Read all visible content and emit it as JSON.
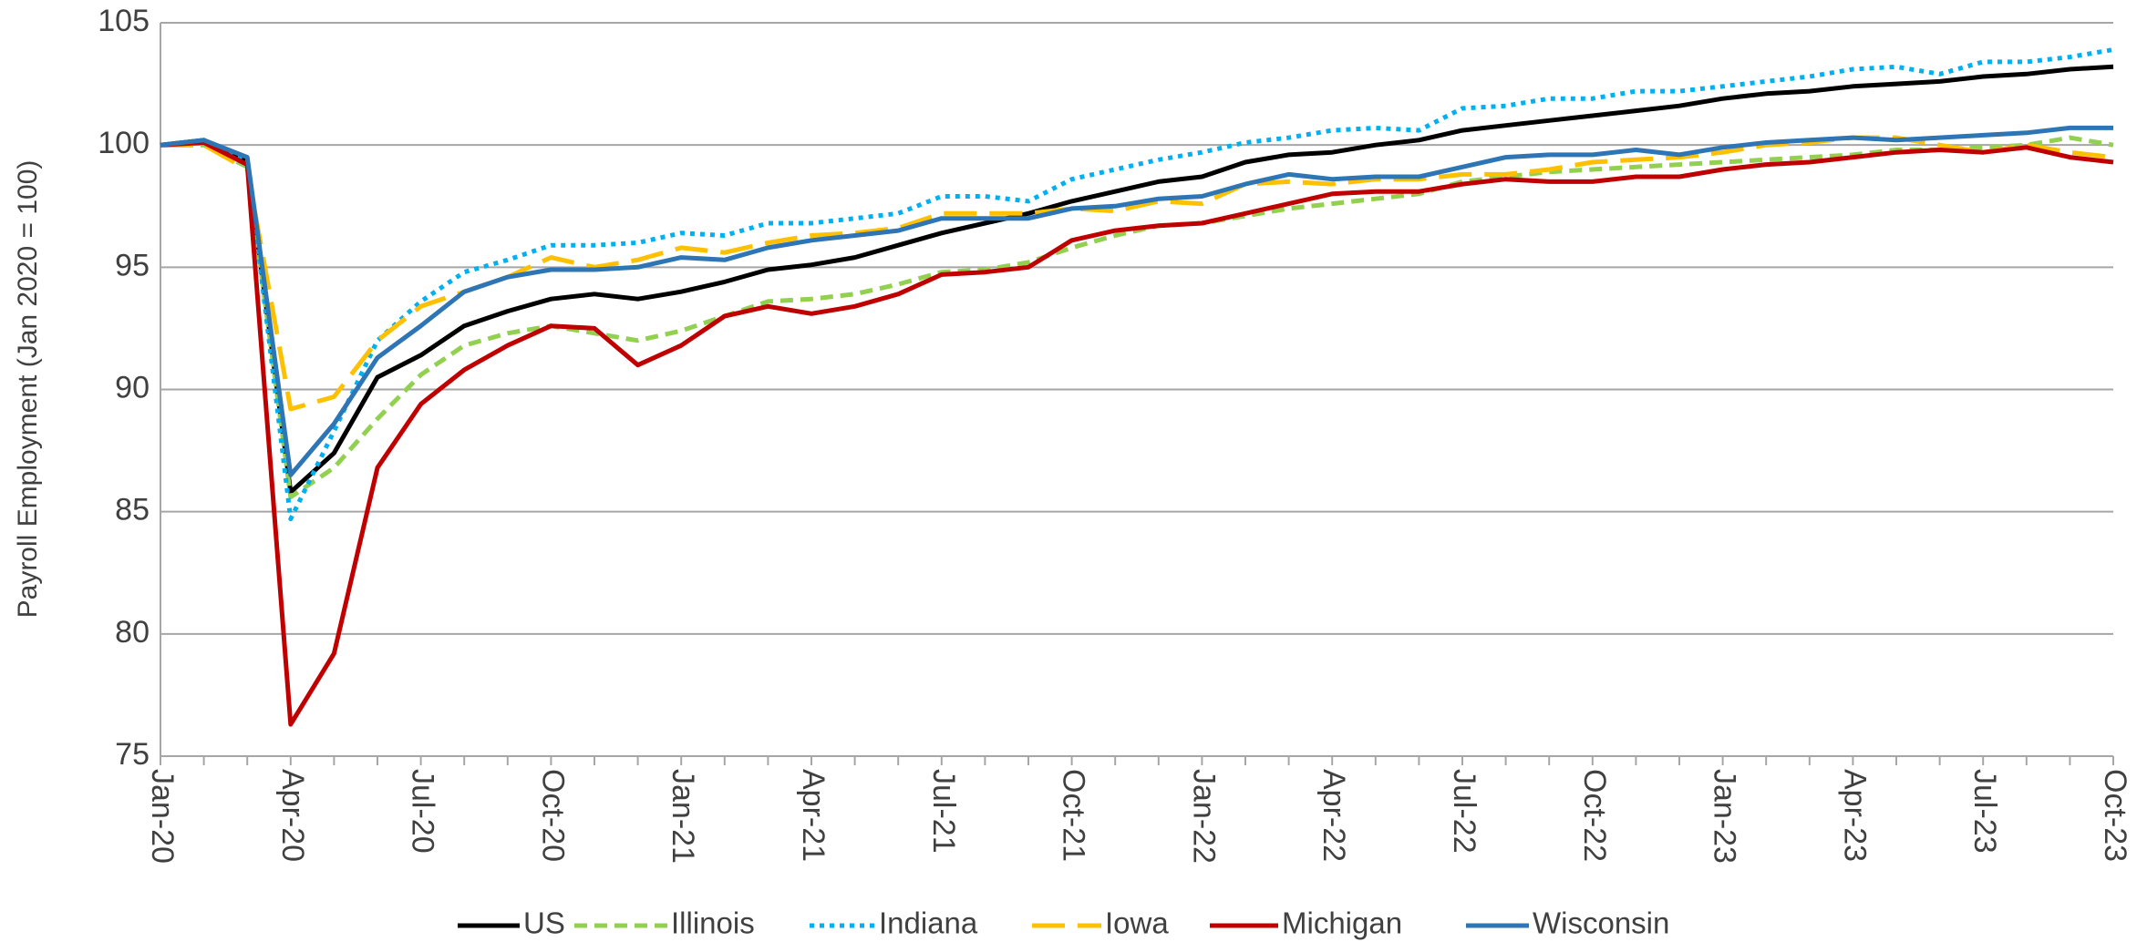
{
  "chart_data": {
    "type": "line",
    "y_label": "Payroll Employment (Jan 2020 = 100)",
    "categories": [
      "Jan-20",
      null,
      null,
      "Apr-20",
      null,
      null,
      "Jul-20",
      null,
      null,
      "Oct-20",
      null,
      null,
      "Jan-21",
      null,
      null,
      "Apr-21",
      null,
      null,
      "Jul-21",
      null,
      null,
      "Oct-21",
      null,
      null,
      "Jan-22",
      null,
      null,
      "Apr-22",
      null,
      null,
      "Jul-22",
      null,
      null,
      "Oct-22",
      null,
      null,
      "Jan-23",
      null,
      null,
      "Apr-23",
      null,
      null,
      "Jul-23",
      null,
      null,
      "Oct-23"
    ],
    "ylim": [
      75,
      105
    ],
    "yticks": [
      75,
      80,
      85,
      90,
      95,
      100,
      105
    ],
    "grid": true,
    "legend": "bottom",
    "series": [
      {
        "name": "US",
        "color": "#000000",
        "style": "solid",
        "values": [
          100,
          100.2,
          99.3,
          85.8,
          87.4,
          90.5,
          91.4,
          92.6,
          93.2,
          93.7,
          93.9,
          93.7,
          94.0,
          94.4,
          94.9,
          95.1,
          95.4,
          95.9,
          96.4,
          96.8,
          97.2,
          97.7,
          98.1,
          98.5,
          98.7,
          99.3,
          99.6,
          99.7,
          100.0,
          100.2,
          100.6,
          100.8,
          101.0,
          101.2,
          101.4,
          101.6,
          101.9,
          102.1,
          102.2,
          102.4,
          102.5,
          102.6,
          102.8,
          102.9,
          103.1,
          103.2
        ]
      },
      {
        "name": "Illinois",
        "color": "#92d050",
        "style": "dashed",
        "values": [
          100,
          100.0,
          99.1,
          85.6,
          86.8,
          88.8,
          90.6,
          91.8,
          92.3,
          92.6,
          92.3,
          92.0,
          92.4,
          93.0,
          93.6,
          93.7,
          93.9,
          94.3,
          94.8,
          94.9,
          95.2,
          95.8,
          96.3,
          96.7,
          96.8,
          97.1,
          97.4,
          97.6,
          97.8,
          98.0,
          98.5,
          98.7,
          98.9,
          99.0,
          99.1,
          99.2,
          99.3,
          99.4,
          99.5,
          99.6,
          99.8,
          99.8,
          99.9,
          100.0,
          100.3,
          100.0
        ]
      },
      {
        "name": "Indiana",
        "color": "#00b0f0",
        "style": "dotted",
        "values": [
          100,
          100.1,
          99.4,
          84.7,
          88.3,
          92.0,
          93.6,
          94.8,
          95.3,
          95.9,
          95.9,
          96.0,
          96.4,
          96.3,
          96.8,
          96.8,
          97.0,
          97.2,
          97.9,
          97.9,
          97.7,
          98.6,
          99.0,
          99.4,
          99.7,
          100.1,
          100.3,
          100.6,
          100.7,
          100.6,
          101.5,
          101.6,
          101.9,
          101.9,
          102.2,
          102.2,
          102.4,
          102.6,
          102.8,
          103.1,
          103.2,
          102.9,
          103.4,
          103.4,
          103.6,
          103.9
        ]
      },
      {
        "name": "Iowa",
        "color": "#ffc000",
        "style": "longdash",
        "values": [
          100,
          100.0,
          99.0,
          89.2,
          89.7,
          92.0,
          93.4,
          94.0,
          94.6,
          95.4,
          95.0,
          95.3,
          95.8,
          95.6,
          96.0,
          96.3,
          96.4,
          96.6,
          97.2,
          97.2,
          97.2,
          97.4,
          97.3,
          97.7,
          97.6,
          98.4,
          98.5,
          98.4,
          98.6,
          98.6,
          98.8,
          98.8,
          99.0,
          99.3,
          99.4,
          99.5,
          99.7,
          100.0,
          100.1,
          100.3,
          100.3,
          100.0,
          99.7,
          100.0,
          99.7,
          99.5
        ]
      },
      {
        "name": "Michigan",
        "color": "#c00000",
        "style": "solid",
        "values": [
          100,
          100.1,
          99.2,
          76.3,
          79.2,
          86.8,
          89.4,
          90.8,
          91.8,
          92.6,
          92.5,
          91.0,
          91.8,
          93.0,
          93.4,
          93.1,
          93.4,
          93.9,
          94.7,
          94.8,
          95.0,
          96.1,
          96.5,
          96.7,
          96.8,
          97.2,
          97.6,
          98.0,
          98.1,
          98.1,
          98.4,
          98.6,
          98.5,
          98.5,
          98.7,
          98.7,
          99.0,
          99.2,
          99.3,
          99.5,
          99.7,
          99.8,
          99.7,
          99.9,
          99.5,
          99.3
        ]
      },
      {
        "name": "Wisconsin",
        "color": "#2e75b6",
        "style": "solid",
        "values": [
          100,
          100.2,
          99.5,
          86.5,
          88.6,
          91.3,
          92.6,
          94.0,
          94.6,
          94.9,
          94.9,
          95.0,
          95.4,
          95.3,
          95.8,
          96.1,
          96.3,
          96.5,
          97.0,
          97.0,
          97.0,
          97.4,
          97.5,
          97.8,
          97.9,
          98.4,
          98.8,
          98.6,
          98.7,
          98.7,
          99.1,
          99.5,
          99.6,
          99.6,
          99.8,
          99.6,
          99.9,
          100.1,
          100.2,
          100.3,
          100.2,
          100.3,
          100.4,
          100.5,
          100.7,
          100.7
        ]
      }
    ]
  }
}
